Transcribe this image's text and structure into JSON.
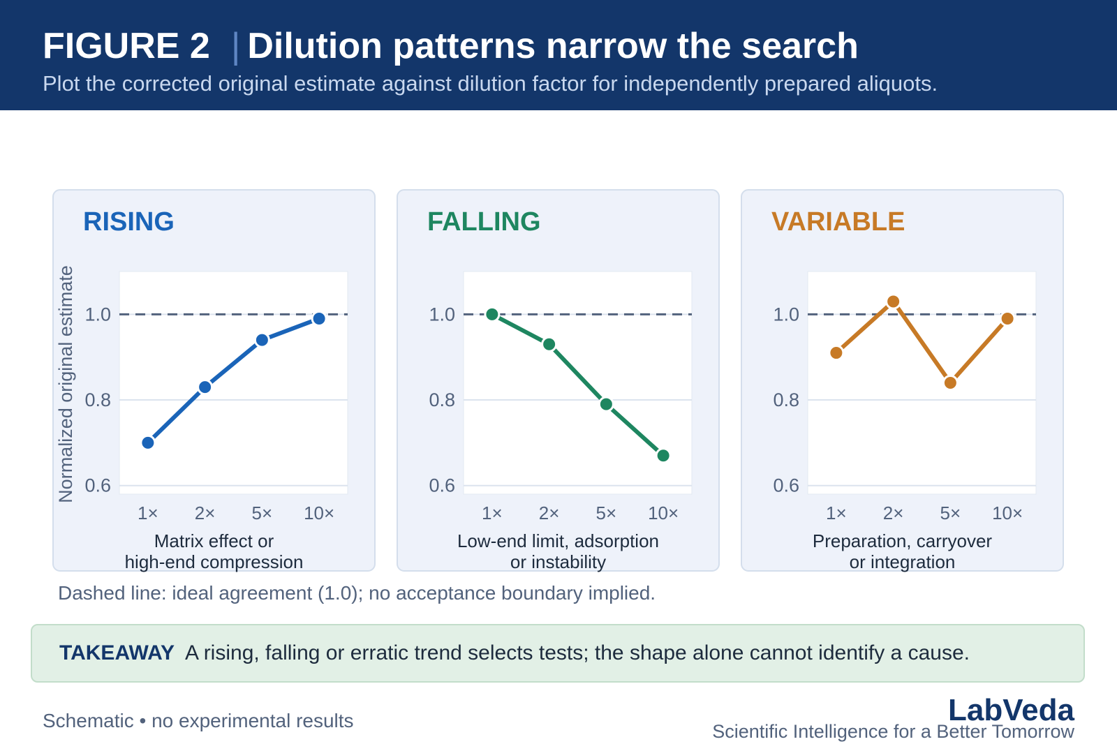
{
  "header": {
    "figure_label": "FIGURE 2",
    "separator": "|",
    "title": "Dilution patterns narrow the search",
    "subtitle": "Plot the corrected original estimate against dilution factor for independently prepared aliquots."
  },
  "colors": {
    "header_bg": "#13366a",
    "rising": "#1a64b8",
    "falling": "#1e8660",
    "variable": "#c77a26",
    "panel_bg": "#eef2fa",
    "reference_line": "#52627c"
  },
  "chart_data": [
    {
      "type": "line",
      "title": "RISING",
      "x": [
        "1×",
        "2×",
        "5×",
        "10×"
      ],
      "values": [
        0.7,
        0.83,
        0.94,
        0.99
      ],
      "ylabel": "Normalized original estimate",
      "xlabel": "",
      "yticks": [
        "1.0",
        "0.8",
        "0.6"
      ],
      "ylim": [
        0.58,
        1.1
      ],
      "reference_line": 1.0,
      "grid": true,
      "caption": [
        "Matrix effect or",
        "high-end compression"
      ],
      "color": "#1a64b8"
    },
    {
      "type": "line",
      "title": "FALLING",
      "x": [
        "1×",
        "2×",
        "5×",
        "10×"
      ],
      "values": [
        1.0,
        0.93,
        0.79,
        0.67
      ],
      "ylabel": "",
      "xlabel": "",
      "yticks": [
        "1.0",
        "0.8",
        "0.6"
      ],
      "ylim": [
        0.58,
        1.1
      ],
      "reference_line": 1.0,
      "grid": true,
      "caption": [
        "Low-end limit, adsorption",
        "or instability"
      ],
      "color": "#1e8660"
    },
    {
      "type": "line",
      "title": "VARIABLE",
      "x": [
        "1×",
        "2×",
        "5×",
        "10×"
      ],
      "values": [
        0.91,
        1.03,
        0.84,
        0.99
      ],
      "ylabel": "",
      "xlabel": "",
      "yticks": [
        "1.0",
        "0.8",
        "0.6"
      ],
      "ylim": [
        0.58,
        1.1
      ],
      "reference_line": 1.0,
      "grid": true,
      "caption": [
        "Preparation, carryover",
        "or integration"
      ],
      "color": "#c77a26"
    }
  ],
  "note": "Dashed line: ideal agreement (1.0); no acceptance boundary implied.",
  "takeaway": {
    "label": "TAKEAWAY",
    "text": "A rising, falling or erratic trend selects tests; the shape alone cannot identify a cause."
  },
  "footer": {
    "note": "Schematic • no experimental results",
    "brand": "LabVeda",
    "tagline": "Scientific Intelligence for a Better Tomorrow"
  }
}
